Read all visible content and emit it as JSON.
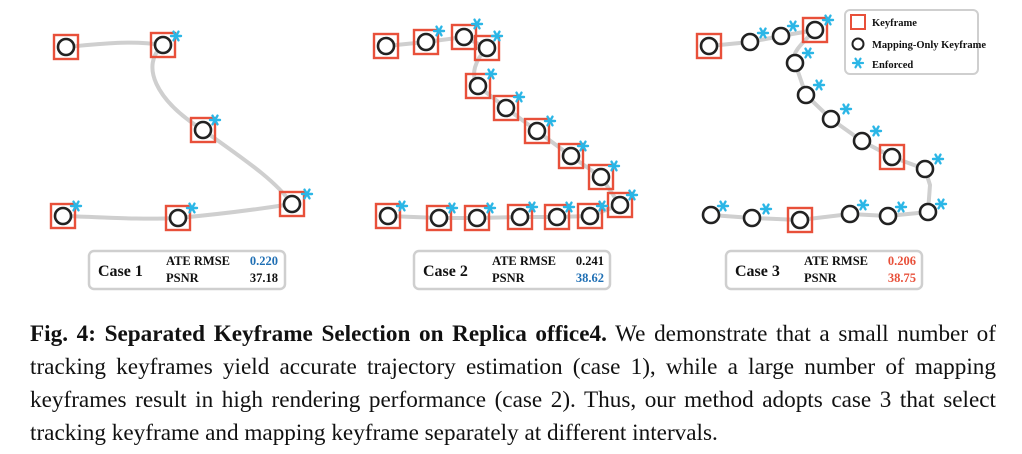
{
  "legend": {
    "keyframe": "Keyframe",
    "mapping_only": "Mapping-Only Keyframe",
    "enforced": "Enforced"
  },
  "colors": {
    "keyframe_box": "#e8503a",
    "node": "#222222",
    "enforced": "#2bb6e6",
    "trajectory": "#cfcfcf",
    "best_blue": "#1f6fb4",
    "best_red": "#e8503a"
  },
  "cases": [
    {
      "label": "Case 1",
      "metric1_name": "ATE RMSE",
      "metric1_value": "0.220",
      "metric1_color": "#1f6fb4",
      "metric2_name": "PSNR",
      "metric2_value": "37.18",
      "metric2_color": "#111111"
    },
    {
      "label": "Case 2",
      "metric1_name": "ATE RMSE",
      "metric1_value": "0.241",
      "metric1_color": "#111111",
      "metric2_name": "PSNR",
      "metric2_value": "38.62",
      "metric2_color": "#1f6fb4"
    },
    {
      "label": "Case 3",
      "metric1_name": "ATE RMSE",
      "metric1_value": "0.206",
      "metric1_color": "#e8503a",
      "metric2_name": "PSNR",
      "metric2_value": "38.75",
      "metric2_color": "#e8503a"
    }
  ],
  "caption": {
    "fig_label": "Fig. 4:",
    "title": "Separated Keyframe Selection on Replica office4.",
    "body": "We demonstrate that a small number of tracking keyframes yield accurate trajectory estimation (case 1), while a large number of mapping keyframes result in high rendering performance (case 2). Thus, our method adopts case 3 that select tracking keyframe and mapping keyframe separately at different intervals."
  }
}
